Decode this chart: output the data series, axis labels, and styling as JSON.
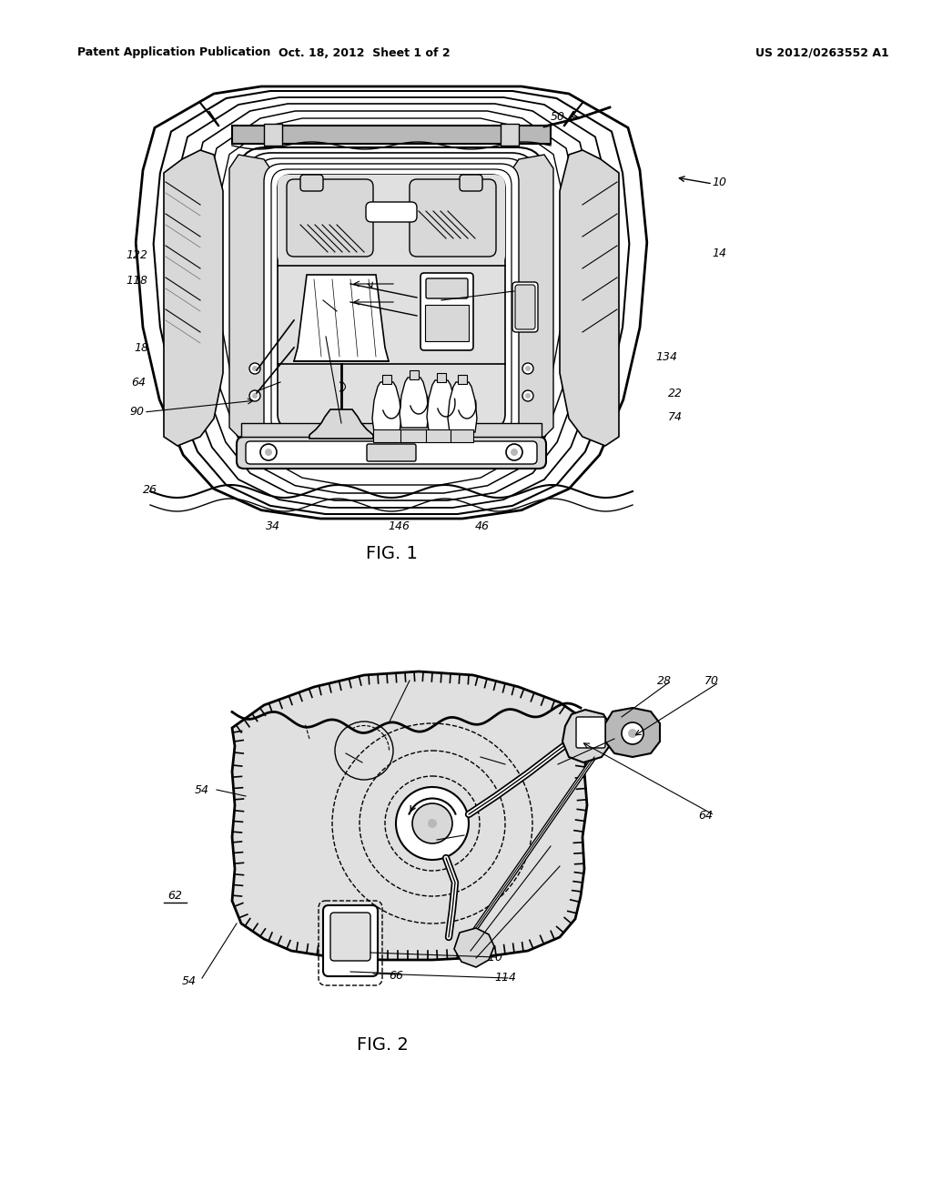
{
  "bg_color": "#ffffff",
  "line_color": "#000000",
  "header_left": "Patent Application Publication",
  "header_center": "Oct. 18, 2012  Sheet 1 of 2",
  "header_right": "US 2012/0263552 A1",
  "fig1_label": "FIG. 1",
  "fig2_label": "FIG. 2",
  "stipple_color": "#e0e0e0",
  "light_gray": "#d8d8d8",
  "mid_gray": "#b8b8b8"
}
